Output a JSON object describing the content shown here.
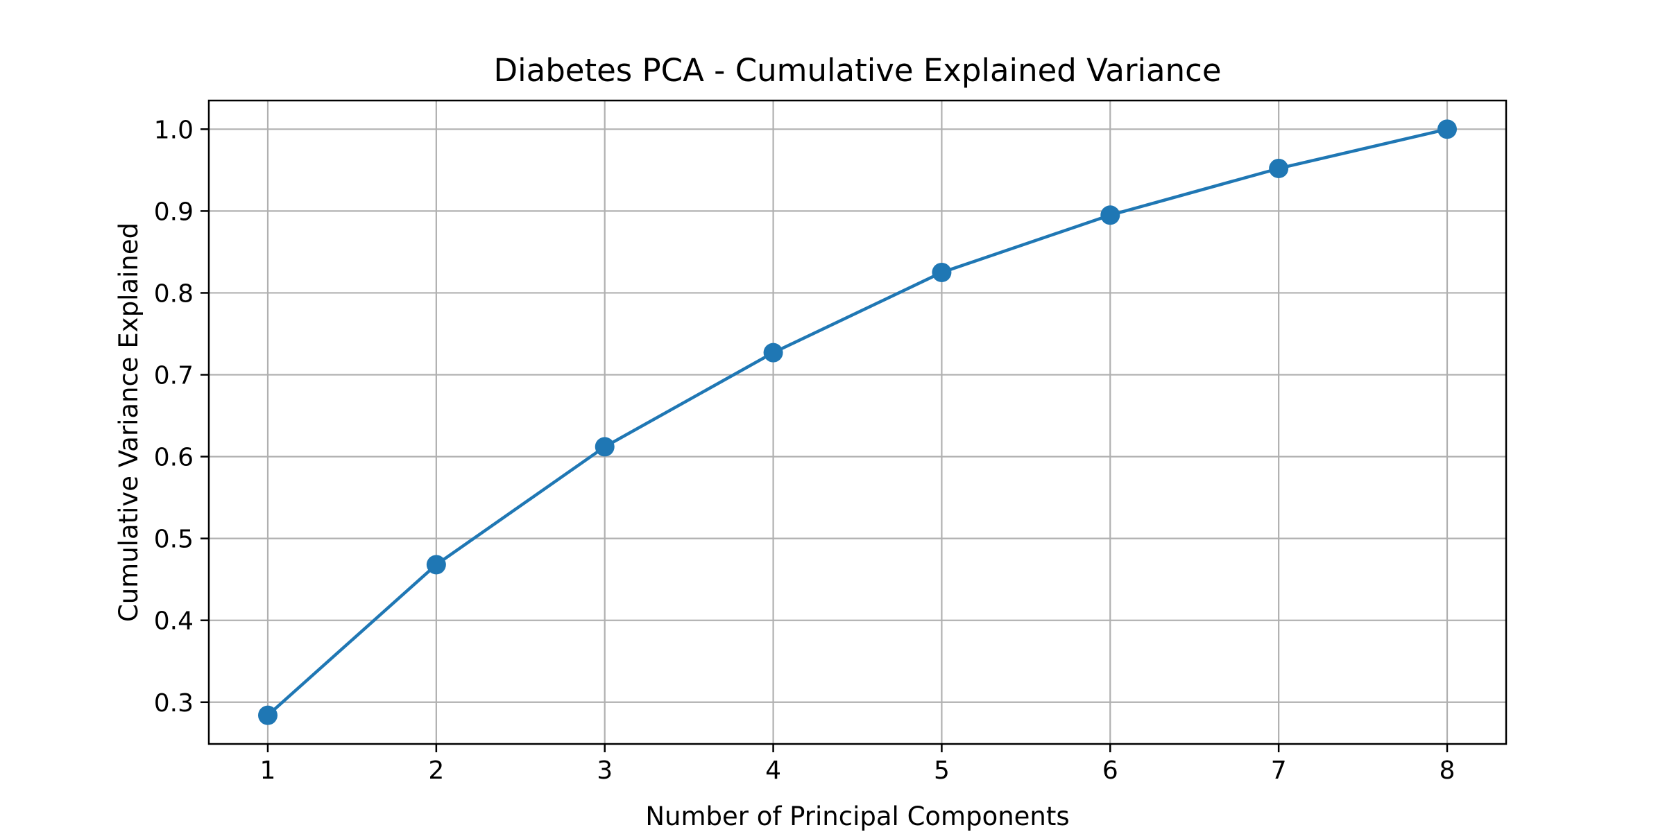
{
  "chart_data": {
    "type": "line",
    "title": "Diabetes PCA - Cumulative Explained Variance",
    "xlabel": "Number of Principal Components",
    "ylabel": "Cumulative Variance Explained",
    "x": [
      1,
      2,
      3,
      4,
      5,
      6,
      7,
      8
    ],
    "series": [
      {
        "values": [
          0.284,
          0.468,
          0.612,
          0.727,
          0.825,
          0.895,
          0.952,
          1.0
        ],
        "color": "#1f77b4",
        "marker": "circle"
      }
    ],
    "xticks": [
      "1",
      "2",
      "3",
      "4",
      "5",
      "6",
      "7",
      "8"
    ],
    "yticks": [
      "0.3",
      "0.4",
      "0.5",
      "0.6",
      "0.7",
      "0.8",
      "0.9",
      "1.0"
    ],
    "xlim": [
      0.65,
      8.35
    ],
    "ylim": [
      0.249,
      1.035
    ],
    "grid": true,
    "colors": {
      "series": "#1f77b4",
      "grid": "#b0b0b0",
      "axes": "#000000"
    }
  }
}
